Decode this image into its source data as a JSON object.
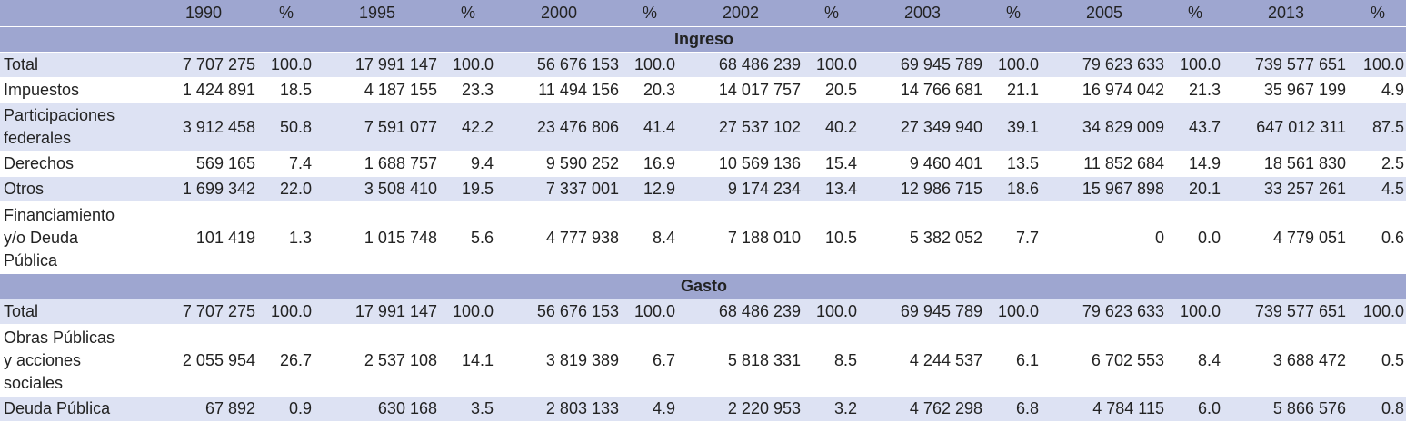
{
  "table": {
    "columns": [
      "1990",
      "%",
      "1995",
      "%",
      "2000",
      "%",
      "2002",
      "%",
      "2003",
      "%",
      "2005",
      "%",
      "2013",
      "%"
    ],
    "sections": [
      {
        "title": "Ingreso",
        "rows": [
          {
            "label": [
              "Total"
            ],
            "cells": [
              "7 707 275",
              "100.0",
              "17 991 147",
              "100.0",
              "56 676 153",
              "100.0",
              "68 486 239",
              "100.0",
              "69 945 789",
              "100.0",
              "79 623 633",
              "100.0",
              "739 577 651",
              "100.0"
            ]
          },
          {
            "label": [
              "Impuestos"
            ],
            "cells": [
              "1 424 891",
              "18.5",
              "4 187 155",
              "23.3",
              "11 494 156",
              "20.3",
              "14 017 757",
              "20.5",
              "14 766 681",
              "21.1",
              "16 974 042",
              "21.3",
              "35 967 199",
              "4.9"
            ]
          },
          {
            "label": [
              "Participaciones",
              "federales"
            ],
            "cells": [
              "3 912 458",
              "50.8",
              "7 591 077",
              "42.2",
              "23 476 806",
              "41.4",
              "27 537 102",
              "40.2",
              "27 349 940",
              "39.1",
              "34 829 009",
              "43.7",
              "647 012 311",
              "87.5"
            ]
          },
          {
            "label": [
              "Derechos"
            ],
            "cells": [
              "569 165",
              "7.4",
              "1 688 757",
              "9.4",
              "9 590 252",
              "16.9",
              "10 569 136",
              "15.4",
              "9 460 401",
              "13.5",
              "11 852 684",
              "14.9",
              "18 561 830",
              "2.5"
            ]
          },
          {
            "label": [
              "Otros"
            ],
            "cells": [
              "1 699 342",
              "22.0",
              "3 508 410",
              "19.5",
              "7 337 001",
              "12.9",
              "9 174 234",
              "13.4",
              "12 986 715",
              "18.6",
              "15 967 898",
              "20.1",
              "33 257 261",
              "4.5"
            ]
          },
          {
            "label": [
              "Financiamiento",
              "y/o Deuda",
              "Pública"
            ],
            "cells": [
              "101 419",
              "1.3",
              "1 015 748",
              "5.6",
              "4 777 938",
              "8.4",
              "7 188 010",
              "10.5",
              "5 382 052",
              "7.7",
              "0",
              "0.0",
              "4 779 051",
              "0.6"
            ]
          }
        ]
      },
      {
        "title": "Gasto",
        "rows": [
          {
            "label": [
              "Total"
            ],
            "cells": [
              "7 707 275",
              "100.0",
              "17 991 147",
              "100.0",
              "56 676 153",
              "100.0",
              "68 486 239",
              "100.0",
              "69 945 789",
              "100.0",
              "79 623 633",
              "100.0",
              "739 577 651",
              "100.0"
            ]
          },
          {
            "label": [
              "Obras Públicas",
              "y acciones",
              "sociales"
            ],
            "cells": [
              "2 055 954",
              "26.7",
              "2 537 108",
              "14.1",
              "3 819 389",
              "6.7",
              "5 818 331",
              "8.5",
              "4 244 537",
              "6.1",
              "6 702 553",
              "8.4",
              "3 688 472",
              "0.5"
            ]
          },
          {
            "label": [
              "Deuda Pública"
            ],
            "cells": [
              "67 892",
              "0.9",
              "630 168",
              "3.5",
              "2 803 133",
              "4.9",
              "2 220 953",
              "3.2",
              "4 762 298",
              "6.8",
              "4 784 115",
              "6.0",
              "5 866 576",
              "0.8"
            ]
          }
        ]
      }
    ]
  }
}
